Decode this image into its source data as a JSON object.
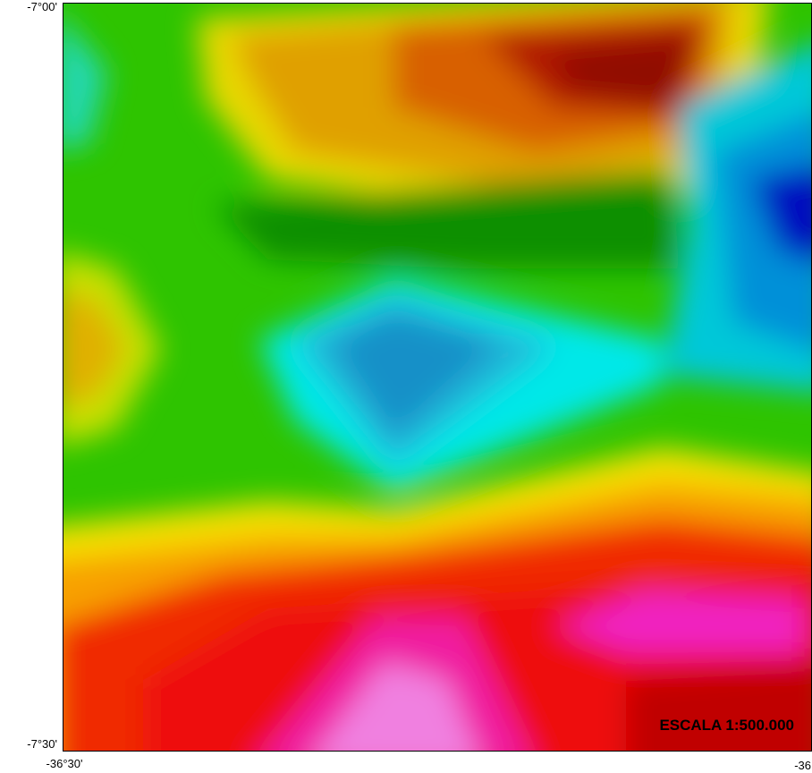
{
  "map": {
    "labels": {
      "lat_top": "-7°00'",
      "lat_bottom": "-7°30'",
      "lon_left": "-36°30'",
      "lon_right": "-36"
    },
    "scale": "ESCALA 1:500.000"
  }
}
